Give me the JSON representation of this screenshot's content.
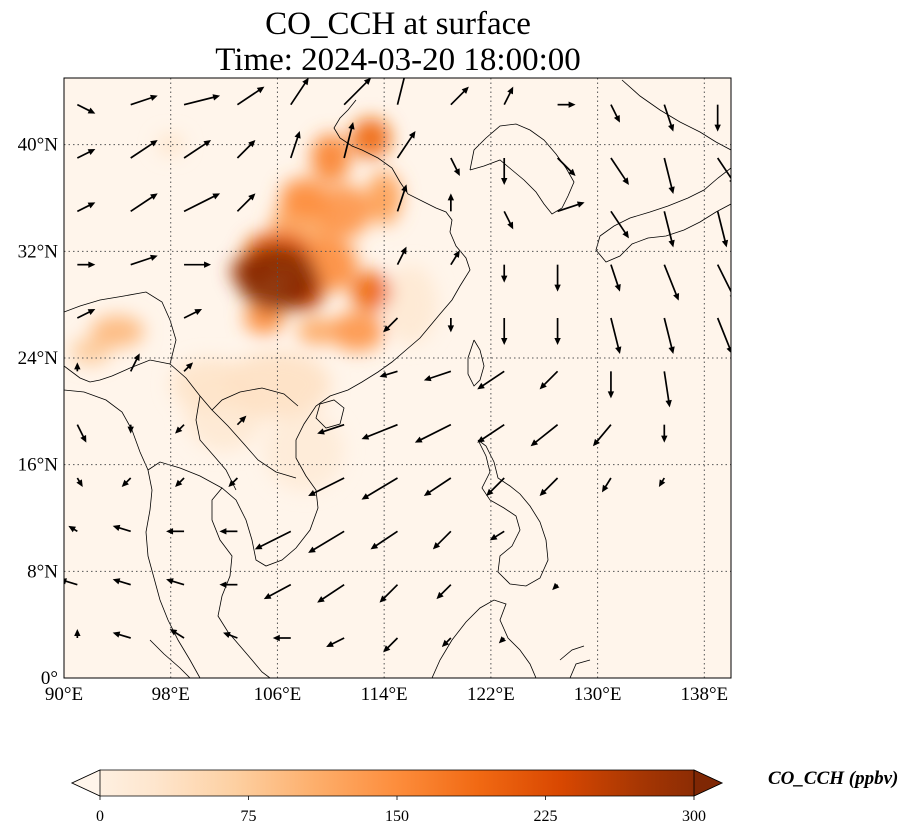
{
  "title": {
    "line1": "CO_CCH at surface",
    "line2": "Time: 2024-03-20 18:00:00"
  },
  "axes": {
    "lon_range": [
      90,
      140
    ],
    "lat_range": [
      0,
      45
    ],
    "lon_ticks": [
      {
        "value": 90,
        "label": "90°E"
      },
      {
        "value": 98,
        "label": "98°E"
      },
      {
        "value": 106,
        "label": "106°E"
      },
      {
        "value": 114,
        "label": "114°E"
      },
      {
        "value": 122,
        "label": "122°E"
      },
      {
        "value": 130,
        "label": "130°E"
      },
      {
        "value": 138,
        "label": "138°E"
      }
    ],
    "lat_ticks": [
      {
        "value": 0,
        "label": "0°"
      },
      {
        "value": 8,
        "label": "8°N"
      },
      {
        "value": 16,
        "label": "16°N"
      },
      {
        "value": 24,
        "label": "24°N"
      },
      {
        "value": 32,
        "label": "32°N"
      },
      {
        "value": 40,
        "label": "40°N"
      }
    ],
    "gridlines": "dotted"
  },
  "colorbar": {
    "label": "CO_CCH (ppbv)",
    "min": 0,
    "max": 300,
    "ticks": [
      {
        "value": 0,
        "label": "0"
      },
      {
        "value": 75,
        "label": "75"
      },
      {
        "value": 150,
        "label": "150"
      },
      {
        "value": 225,
        "label": "225"
      },
      {
        "value": 300,
        "label": "300"
      }
    ],
    "extend": "both",
    "colormap": [
      "#fff5eb",
      "#fee6ce",
      "#fdd0a2",
      "#fdae6b",
      "#fd8d3c",
      "#f16913",
      "#d94801",
      "#a63603",
      "#7f2704"
    ]
  },
  "concentration_field": [
    {
      "lon": 106,
      "lat": 30,
      "ppbv": 290,
      "spread": [
        3.0,
        2.5
      ]
    },
    {
      "lon": 104,
      "lat": 30.5,
      "ppbv": 260,
      "spread": [
        1.5,
        1.2
      ]
    },
    {
      "lon": 108,
      "lat": 29,
      "ppbv": 240,
      "spread": [
        1.5,
        1.5
      ]
    },
    {
      "lon": 106,
      "lat": 32,
      "ppbv": 200,
      "spread": [
        2.5,
        1.5
      ]
    },
    {
      "lon": 113,
      "lat": 29,
      "ppbv": 190,
      "spread": [
        1.5,
        1.5
      ]
    },
    {
      "lon": 112,
      "lat": 26,
      "ppbv": 140,
      "spread": [
        2.0,
        1.5
      ]
    },
    {
      "lon": 110,
      "lat": 31,
      "ppbv": 150,
      "spread": [
        2.0,
        2.0
      ]
    },
    {
      "lon": 108,
      "lat": 36,
      "ppbv": 150,
      "spread": [
        1.8,
        1.5
      ]
    },
    {
      "lon": 111,
      "lat": 35,
      "ppbv": 140,
      "spread": [
        2.0,
        2.0
      ]
    },
    {
      "lon": 113,
      "lat": 40.5,
      "ppbv": 190,
      "spread": [
        1.5,
        1.5
      ]
    },
    {
      "lon": 110,
      "lat": 39,
      "ppbv": 160,
      "spread": [
        1.5,
        1.8
      ]
    },
    {
      "lon": 114,
      "lat": 36,
      "ppbv": 130,
      "spread": [
        1.3,
        2.0
      ]
    },
    {
      "lon": 108,
      "lat": 34,
      "ppbv": 120,
      "spread": [
        2.5,
        2.0
      ]
    },
    {
      "lon": 105,
      "lat": 27,
      "ppbv": 150,
      "spread": [
        1.5,
        1.2
      ]
    },
    {
      "lon": 109,
      "lat": 26,
      "ppbv": 120,
      "spread": [
        1.5,
        1.0
      ]
    },
    {
      "lon": 94,
      "lat": 26,
      "ppbv": 100,
      "spread": [
        2.0,
        1.2
      ]
    },
    {
      "lon": 92,
      "lat": 24.5,
      "ppbv": 80,
      "spread": [
        1.5,
        1.0
      ]
    },
    {
      "lon": 106,
      "lat": 22,
      "ppbv": 45,
      "spread": [
        4.0,
        2.5
      ]
    },
    {
      "lon": 101,
      "lat": 22,
      "ppbv": 40,
      "spread": [
        3.0,
        2.0
      ]
    },
    {
      "lon": 108,
      "lat": 17,
      "ppbv": 25,
      "spread": [
        3.0,
        3.0
      ]
    },
    {
      "lon": 116,
      "lat": 28,
      "ppbv": 30,
      "spread": [
        2.0,
        3.0
      ]
    },
    {
      "lon": 98,
      "lat": 40,
      "ppbv": 40,
      "spread": [
        1.0,
        0.8
      ]
    },
    {
      "lon": 102,
      "lat": 20,
      "ppbv": 30,
      "spread": [
        3.0,
        3.0
      ]
    }
  ],
  "wind_vectors": [
    {
      "lon": 91,
      "lat": 43,
      "u": 1,
      "v": -0.5
    },
    {
      "lon": 95,
      "lat": 43,
      "u": 1.5,
      "v": 0.5
    },
    {
      "lon": 99,
      "lat": 43,
      "u": 2,
      "v": 0.5
    },
    {
      "lon": 103,
      "lat": 43,
      "u": 1.5,
      "v": 1
    },
    {
      "lon": 107,
      "lat": 43,
      "u": 1,
      "v": 1.5
    },
    {
      "lon": 111,
      "lat": 43,
      "u": 1.5,
      "v": 1.5
    },
    {
      "lon": 115,
      "lat": 43,
      "u": 0.5,
      "v": 2
    },
    {
      "lon": 119,
      "lat": 43,
      "u": 1,
      "v": 1
    },
    {
      "lon": 123,
      "lat": 43,
      "u": 0.5,
      "v": 1
    },
    {
      "lon": 127,
      "lat": 43,
      "u": 1,
      "v": 0
    },
    {
      "lon": 131,
      "lat": 43,
      "u": 0.5,
      "v": -1
    },
    {
      "lon": 135,
      "lat": 43,
      "u": 0.5,
      "v": -1.5
    },
    {
      "lon": 139,
      "lat": 43,
      "u": 0,
      "v": -1.5
    },
    {
      "lon": 91,
      "lat": 39,
      "u": 1,
      "v": 0.5
    },
    {
      "lon": 95,
      "lat": 39,
      "u": 1.5,
      "v": 1
    },
    {
      "lon": 99,
      "lat": 39,
      "u": 1.5,
      "v": 1
    },
    {
      "lon": 103,
      "lat": 39,
      "u": 1,
      "v": 1
    },
    {
      "lon": 107,
      "lat": 39,
      "u": 0.5,
      "v": 1.5
    },
    {
      "lon": 111,
      "lat": 39,
      "u": 0.5,
      "v": 2
    },
    {
      "lon": 115,
      "lat": 39,
      "u": 1,
      "v": 1.5
    },
    {
      "lon": 119,
      "lat": 39,
      "u": 0.5,
      "v": -1
    },
    {
      "lon": 123,
      "lat": 39,
      "u": 0,
      "v": -1.5
    },
    {
      "lon": 127,
      "lat": 39,
      "u": 1,
      "v": -1
    },
    {
      "lon": 131,
      "lat": 39,
      "u": 1,
      "v": -1.5
    },
    {
      "lon": 135,
      "lat": 39,
      "u": 0.5,
      "v": -2
    },
    {
      "lon": 139,
      "lat": 39,
      "u": 1,
      "v": -1.5
    },
    {
      "lon": 91,
      "lat": 35,
      "u": 1,
      "v": 0.5
    },
    {
      "lon": 95,
      "lat": 35,
      "u": 1.5,
      "v": 1
    },
    {
      "lon": 99,
      "lat": 35,
      "u": 2,
      "v": 1
    },
    {
      "lon": 103,
      "lat": 35,
      "u": 1,
      "v": 1
    },
    {
      "lon": 115,
      "lat": 35,
      "u": 0.5,
      "v": 1.5
    },
    {
      "lon": 119,
      "lat": 35,
      "u": 0,
      "v": 1
    },
    {
      "lon": 123,
      "lat": 35,
      "u": 0.5,
      "v": -1
    },
    {
      "lon": 127,
      "lat": 35,
      "u": 1.5,
      "v": 0.5
    },
    {
      "lon": 131,
      "lat": 35,
      "u": 1,
      "v": -1.5
    },
    {
      "lon": 135,
      "lat": 35,
      "u": 0.5,
      "v": -2
    },
    {
      "lon": 139,
      "lat": 35,
      "u": 0.5,
      "v": -2
    },
    {
      "lon": 91,
      "lat": 31,
      "u": 1,
      "v": 0
    },
    {
      "lon": 95,
      "lat": 31,
      "u": 1.5,
      "v": 0.5
    },
    {
      "lon": 99,
      "lat": 31,
      "u": 1.5,
      "v": 0
    },
    {
      "lon": 115,
      "lat": 31,
      "u": 0.5,
      "v": 1
    },
    {
      "lon": 119,
      "lat": 31,
      "u": 0.5,
      "v": 0.8
    },
    {
      "lon": 123,
      "lat": 31,
      "u": 0,
      "v": -1
    },
    {
      "lon": 127,
      "lat": 31,
      "u": 0,
      "v": -1.5
    },
    {
      "lon": 131,
      "lat": 31,
      "u": 0.5,
      "v": -1.5
    },
    {
      "lon": 135,
      "lat": 31,
      "u": 0.8,
      "v": -2
    },
    {
      "lon": 139,
      "lat": 31,
      "u": 1,
      "v": -2
    },
    {
      "lon": 91,
      "lat": 27,
      "u": 1,
      "v": 0.5
    },
    {
      "lon": 99,
      "lat": 27,
      "u": 1,
      "v": 0.5
    },
    {
      "lon": 115,
      "lat": 27,
      "u": -0.8,
      "v": -0.8
    },
    {
      "lon": 119,
      "lat": 27,
      "u": 0,
      "v": -0.8
    },
    {
      "lon": 123,
      "lat": 27,
      "u": 0,
      "v": -1.5
    },
    {
      "lon": 127,
      "lat": 27,
      "u": 0,
      "v": -1.5
    },
    {
      "lon": 131,
      "lat": 27,
      "u": 0.5,
      "v": -2
    },
    {
      "lon": 135,
      "lat": 27,
      "u": 0.5,
      "v": -2
    },
    {
      "lon": 139,
      "lat": 27,
      "u": 0.8,
      "v": -2
    },
    {
      "lon": 91,
      "lat": 23,
      "u": 0,
      "v": 0.5
    },
    {
      "lon": 95,
      "lat": 23,
      "u": 0.5,
      "v": 1
    },
    {
      "lon": 99,
      "lat": 23,
      "u": 0.5,
      "v": 0.5
    },
    {
      "lon": 115,
      "lat": 23,
      "u": -1,
      "v": -0.3
    },
    {
      "lon": 119,
      "lat": 23,
      "u": -1.5,
      "v": -0.5
    },
    {
      "lon": 123,
      "lat": 23,
      "u": -1.5,
      "v": -1
    },
    {
      "lon": 127,
      "lat": 23,
      "u": -1,
      "v": -1
    },
    {
      "lon": 131,
      "lat": 23,
      "u": 0,
      "v": -1.5
    },
    {
      "lon": 135,
      "lat": 23,
      "u": 0.3,
      "v": -2
    },
    {
      "lon": 91,
      "lat": 19,
      "u": 0.5,
      "v": -1
    },
    {
      "lon": 95,
      "lat": 19,
      "u": 0,
      "v": -0.5
    },
    {
      "lon": 99,
      "lat": 19,
      "u": -0.5,
      "v": -0.5
    },
    {
      "lon": 103,
      "lat": 19,
      "u": 0.5,
      "v": 0.5
    },
    {
      "lon": 111,
      "lat": 19,
      "u": -1.5,
      "v": -0.5
    },
    {
      "lon": 115,
      "lat": 19,
      "u": -2,
      "v": -0.8
    },
    {
      "lon": 119,
      "lat": 19,
      "u": -2,
      "v": -1
    },
    {
      "lon": 123,
      "lat": 19,
      "u": -1.5,
      "v": -1
    },
    {
      "lon": 127,
      "lat": 19,
      "u": -1.5,
      "v": -1.2
    },
    {
      "lon": 131,
      "lat": 19,
      "u": -1,
      "v": -1.2
    },
    {
      "lon": 135,
      "lat": 19,
      "u": 0,
      "v": -1
    },
    {
      "lon": 91,
      "lat": 15,
      "u": 0.3,
      "v": -0.5
    },
    {
      "lon": 95,
      "lat": 15,
      "u": -0.5,
      "v": -0.5
    },
    {
      "lon": 99,
      "lat": 15,
      "u": -0.5,
      "v": -0.5
    },
    {
      "lon": 103,
      "lat": 15,
      "u": -0.5,
      "v": -0.5
    },
    {
      "lon": 111,
      "lat": 15,
      "u": -2,
      "v": -1
    },
    {
      "lon": 115,
      "lat": 15,
      "u": -2,
      "v": -1.2
    },
    {
      "lon": 119,
      "lat": 15,
      "u": -1.5,
      "v": -1
    },
    {
      "lon": 123,
      "lat": 15,
      "u": -1,
      "v": -1
    },
    {
      "lon": 127,
      "lat": 15,
      "u": -1,
      "v": -1
    },
    {
      "lon": 131,
      "lat": 15,
      "u": -0.5,
      "v": -0.8
    },
    {
      "lon": 135,
      "lat": 15,
      "u": -0.3,
      "v": -0.5
    },
    {
      "lon": 91,
      "lat": 11,
      "u": -0.5,
      "v": 0.3
    },
    {
      "lon": 95,
      "lat": 11,
      "u": -1,
      "v": 0.3
    },
    {
      "lon": 99,
      "lat": 11,
      "u": -1,
      "v": 0
    },
    {
      "lon": 103,
      "lat": 11,
      "u": -1,
      "v": 0
    },
    {
      "lon": 107,
      "lat": 11,
      "u": -2,
      "v": -1
    },
    {
      "lon": 111,
      "lat": 11,
      "u": -2,
      "v": -1.2
    },
    {
      "lon": 115,
      "lat": 11,
      "u": -1.5,
      "v": -1
    },
    {
      "lon": 119,
      "lat": 11,
      "u": -1,
      "v": -1
    },
    {
      "lon": 123,
      "lat": 11,
      "u": -0.8,
      "v": -0.5
    },
    {
      "lon": 91,
      "lat": 7,
      "u": -1,
      "v": 0.3
    },
    {
      "lon": 95,
      "lat": 7,
      "u": -1,
      "v": 0.3
    },
    {
      "lon": 99,
      "lat": 7,
      "u": -1,
      "v": 0.3
    },
    {
      "lon": 103,
      "lat": 7,
      "u": -1,
      "v": 0
    },
    {
      "lon": 107,
      "lat": 7,
      "u": -1.5,
      "v": -0.8
    },
    {
      "lon": 111,
      "lat": 7,
      "u": -1.5,
      "v": -1
    },
    {
      "lon": 115,
      "lat": 7,
      "u": -1,
      "v": -1
    },
    {
      "lon": 119,
      "lat": 7,
      "u": -0.8,
      "v": -0.8
    },
    {
      "lon": 127,
      "lat": 7,
      "u": -0.3,
      "v": -0.3
    },
    {
      "lon": 91,
      "lat": 3,
      "u": 0,
      "v": 0.5
    },
    {
      "lon": 95,
      "lat": 3,
      "u": -1,
      "v": 0.3
    },
    {
      "lon": 99,
      "lat": 3,
      "u": -0.8,
      "v": 0.5
    },
    {
      "lon": 103,
      "lat": 3,
      "u": -0.8,
      "v": 0.3
    },
    {
      "lon": 107,
      "lat": 3,
      "u": -1,
      "v": 0
    },
    {
      "lon": 111,
      "lat": 3,
      "u": -1,
      "v": -0.5
    },
    {
      "lon": 115,
      "lat": 3,
      "u": -0.8,
      "v": -0.8
    },
    {
      "lon": 119,
      "lat": 3,
      "u": -0.5,
      "v": -0.5
    },
    {
      "lon": 123,
      "lat": 3,
      "u": -0.3,
      "v": -0.3
    }
  ]
}
